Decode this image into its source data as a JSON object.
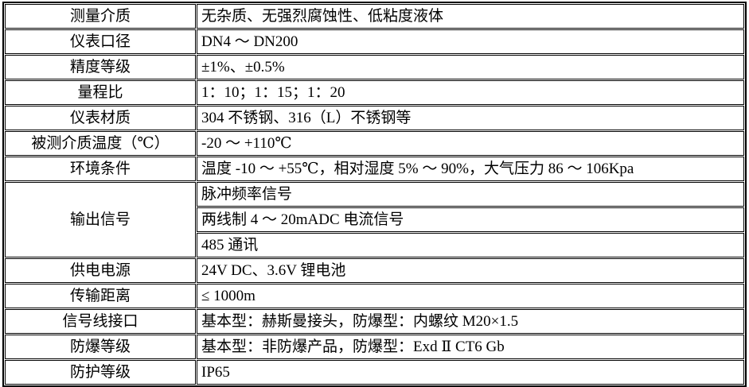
{
  "page": {
    "background_color": "#ffffff",
    "border_color": "#000000",
    "text_color": "#000000"
  },
  "spec_table": {
    "rows": [
      {
        "label": "测量介质",
        "value": "无杂质、无强烈腐蚀性、低粘度液体"
      },
      {
        "label": "仪表口径",
        "value": "DN4 ～ DN200"
      },
      {
        "label": "精度等级",
        "value": "±1%、±0.5%"
      },
      {
        "label": "量程比",
        "value": "1：10；1：15；1：20"
      },
      {
        "label": "仪表材质",
        "value": "304 不锈钢、316（L）不锈钢等"
      },
      {
        "label": "被测介质温度（℃）",
        "value": "-20 ～ +110℃"
      },
      {
        "label": "环境条件",
        "value": "温度 -10 ～ +55℃，相对湿度 5% ～ 90%，大气压力 86 ～ 106Kpa"
      },
      {
        "label": "输出信号",
        "values": [
          "脉冲频率信号",
          "两线制 4 ～ 20mADC 电流信号",
          "485 通讯"
        ]
      },
      {
        "label": "供电电源",
        "value": "24V DC、3.6V 锂电池"
      },
      {
        "label": "传输距离",
        "value": "≤ 1000m"
      },
      {
        "label": "信号线接口",
        "value": "基本型：赫斯曼接头，防爆型：内螺纹 M20×1.5"
      },
      {
        "label": "防爆等级",
        "value": "基本型：非防爆产品，防爆型：Exd Ⅱ CT6 Gb"
      },
      {
        "label": "防护等级",
        "value": "IP65"
      }
    ]
  }
}
